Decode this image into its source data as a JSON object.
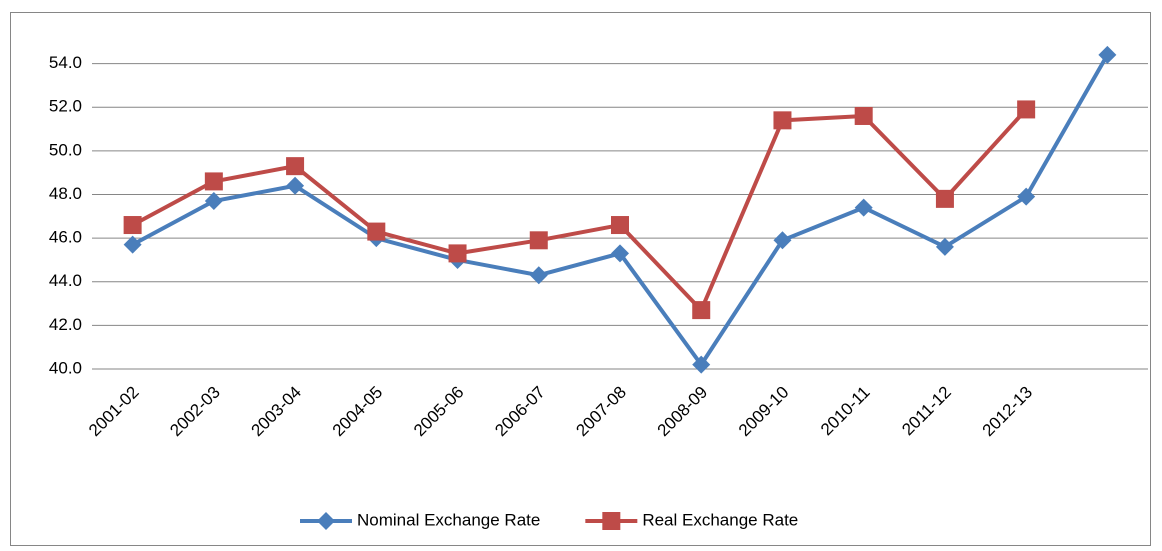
{
  "chart_data": {
    "type": "line",
    "categories": [
      "2001-02",
      "2002-03",
      "2003-04",
      "2004-05",
      "2005-06",
      "2006-07",
      "2007-08",
      "2008-09",
      "2009-10",
      "2010-11",
      "2011-12",
      "2012-13",
      null
    ],
    "series": [
      {
        "name": "Nominal Exchange Rate",
        "color": "#4a7ebb",
        "marker": "diamond",
        "values": [
          45.7,
          47.7,
          48.4,
          46.0,
          45.0,
          44.3,
          45.3,
          40.2,
          45.9,
          47.4,
          45.6,
          47.9,
          54.4
        ]
      },
      {
        "name": "Real Exchange Rate",
        "color": "#be4b48",
        "marker": "square",
        "values": [
          46.6,
          48.6,
          49.3,
          46.3,
          45.3,
          45.9,
          46.6,
          42.7,
          51.4,
          51.6,
          47.8,
          51.9,
          null
        ]
      }
    ],
    "ylim": [
      40,
      56
    ],
    "yticks": [
      {
        "value": 40,
        "label": "40.0"
      },
      {
        "value": 42,
        "label": "42.0"
      },
      {
        "value": 44,
        "label": "44.0"
      },
      {
        "value": 46,
        "label": "46.0"
      },
      {
        "value": 48,
        "label": "48.0"
      },
      {
        "value": 50,
        "label": "50.0"
      },
      {
        "value": 52,
        "label": "52.0"
      },
      {
        "value": 54,
        "label": "54.0"
      }
    ],
    "grid": true,
    "legend": "bottom"
  }
}
